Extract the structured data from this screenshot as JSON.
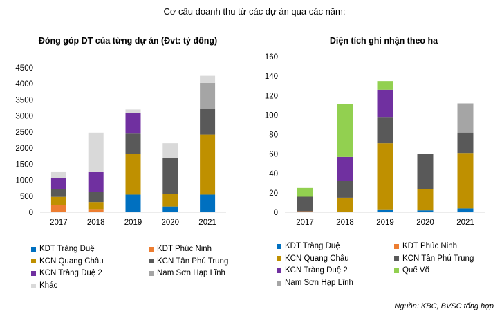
{
  "heading": "Cơ cấu doanh thu từ các dự án qua các năm:",
  "source": "Nguồn: KBC, BVSC tổng hợp",
  "chart_data": [
    {
      "type": "bar",
      "stacked": true,
      "title": "Đóng góp DT của từng dự án (Đvt: tỷ đồng)",
      "categories": [
        "2017",
        "2018",
        "2019",
        "2020",
        "2021"
      ],
      "ylim": [
        0,
        4500
      ],
      "yticks": [
        0,
        500,
        1000,
        1500,
        2000,
        2500,
        3000,
        3500,
        4000,
        4500
      ],
      "grid": false,
      "legend": "bottom",
      "series": [
        {
          "name": "KĐT Tràng Duệ",
          "color": "#0070c0",
          "values": [
            0,
            0,
            550,
            180,
            550
          ]
        },
        {
          "name": "KĐT Phúc Ninh",
          "color": "#ed7d31",
          "values": [
            230,
            100,
            0,
            0,
            0
          ]
        },
        {
          "name": "KCN Quang Châu",
          "color": "#bf9000",
          "values": [
            250,
            220,
            1260,
            380,
            1870
          ]
        },
        {
          "name": "KCN Tân Phú Trung",
          "color": "#595959",
          "values": [
            240,
            310,
            640,
            1140,
            800
          ]
        },
        {
          "name": "KCN Tràng Duệ 2",
          "color": "#7030a0",
          "values": [
            340,
            620,
            630,
            0,
            0
          ]
        },
        {
          "name": "Nam Sơn Hạp Lĩnh",
          "color": "#a5a5a5",
          "values": [
            0,
            0,
            0,
            0,
            810
          ]
        },
        {
          "name": "Khác",
          "color": "#d9d9d9",
          "values": [
            190,
            1230,
            120,
            450,
            220
          ]
        }
      ]
    },
    {
      "type": "bar",
      "stacked": true,
      "title": "Diện tích ghi nhận theo ha",
      "categories": [
        "2017",
        "2018",
        "2019",
        "2020",
        "2021"
      ],
      "ylim": [
        0,
        160
      ],
      "yticks": [
        0,
        20,
        40,
        60,
        80,
        100,
        120,
        140,
        160
      ],
      "grid": false,
      "legend": "bottom",
      "series": [
        {
          "name": "KĐT Tràng Duệ",
          "color": "#0070c0",
          "values": [
            0,
            0,
            3,
            2,
            4
          ]
        },
        {
          "name": "KĐT Phúc Ninh",
          "color": "#ed7d31",
          "values": [
            1,
            0,
            0,
            0,
            0
          ]
        },
        {
          "name": "KCN Quang Châu",
          "color": "#bf9000",
          "values": [
            0,
            15,
            68,
            22,
            57
          ]
        },
        {
          "name": "KCN Tân Phú Trung",
          "color": "#595959",
          "values": [
            15,
            17,
            27,
            36,
            21
          ]
        },
        {
          "name": "KCN Tràng Duệ 2",
          "color": "#7030a0",
          "values": [
            0,
            25,
            28,
            0,
            0
          ]
        },
        {
          "name": "Quế Võ",
          "color": "#92d050",
          "values": [
            9,
            54,
            9,
            0,
            0
          ]
        },
        {
          "name": "Nam Sơn Hạp Lĩnh",
          "color": "#a5a5a5",
          "values": [
            0,
            0,
            0,
            0,
            30
          ]
        }
      ]
    }
  ]
}
